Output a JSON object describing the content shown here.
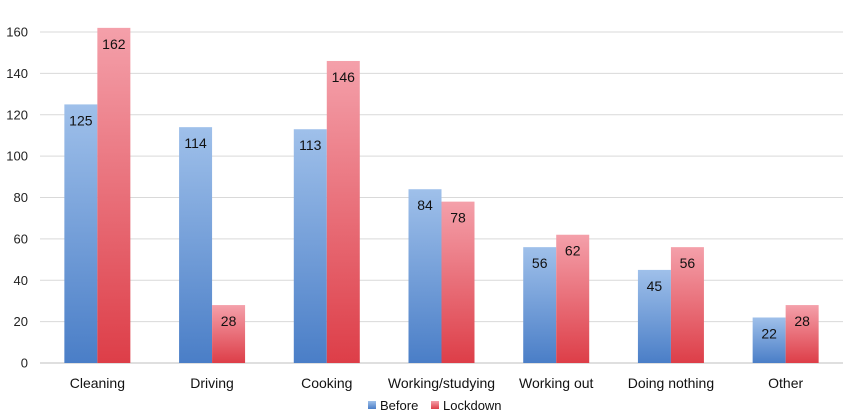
{
  "chart_data": {
    "type": "bar",
    "title": "",
    "xlabel": "",
    "ylabel": "",
    "ylim": [
      0,
      160
    ],
    "yticks": [
      0,
      20,
      40,
      60,
      80,
      100,
      120,
      140,
      160
    ],
    "grid": true,
    "legend_position": "bottom-center",
    "categories": [
      "Cleaning",
      "Driving",
      "Cooking",
      "Working/studying",
      "Working out",
      "Doing nothing",
      "Other"
    ],
    "series": [
      {
        "name": "Before",
        "values": [
          125,
          114,
          113,
          84,
          56,
          45,
          22
        ],
        "color_top": "#9fc0ea",
        "color_bottom": "#4a7ec7"
      },
      {
        "name": "Lockdown",
        "values": [
          162,
          28,
          146,
          78,
          62,
          56,
          28
        ],
        "color_top": "#f4a0aa",
        "color_bottom": "#dd3e48"
      }
    ]
  }
}
